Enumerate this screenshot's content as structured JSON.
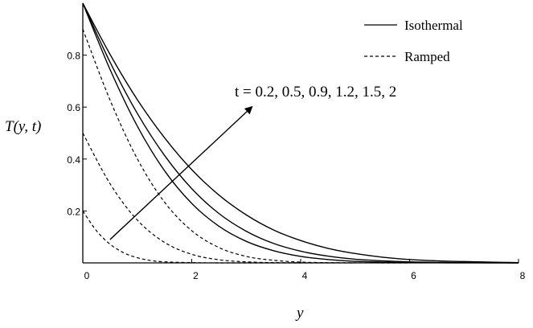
{
  "chart_data": {
    "type": "line",
    "title": "",
    "xlabel": "y",
    "ylabel": "T(y, t)",
    "xlim": [
      0,
      8
    ],
    "ylim": [
      0,
      1
    ],
    "x_ticks": [
      {
        "value": 0,
        "label": "0"
      },
      {
        "value": 2,
        "label": "2"
      },
      {
        "value": 4,
        "label": "4"
      },
      {
        "value": 6,
        "label": "6"
      },
      {
        "value": 8,
        "label": "8"
      }
    ],
    "y_ticks": [
      {
        "value": 0.2,
        "label": "0.2"
      },
      {
        "value": 0.4,
        "label": "0.4"
      },
      {
        "value": 0.6,
        "label": "0.6"
      },
      {
        "value": 0.8,
        "label": "0.8"
      }
    ],
    "grid": false,
    "legend": {
      "position": "top-right",
      "entries": [
        {
          "label": "Isothermal",
          "style": "solid"
        },
        {
          "label": "Ramped",
          "style": "dashed"
        }
      ]
    },
    "annotation": {
      "text": "t = 0.2, 0.5, 0.9, 1.2, 1.5, 2",
      "arrow_from": [
        0.5,
        0.09
      ],
      "arrow_to": [
        3.1,
        0.6
      ]
    },
    "series": [
      {
        "style": "solid",
        "t": 1.2,
        "x": [
          0,
          0.5,
          1,
          1.5,
          2,
          2.5,
          3,
          3.5,
          4,
          4.5,
          5,
          5.5,
          6,
          6.5,
          7,
          7.5,
          8
        ],
        "y": [
          1,
          0.745,
          0.527,
          0.355,
          0.229,
          0.141,
          0.083,
          0.047,
          0.025,
          0.013,
          0.006,
          0.003,
          0.001,
          0.0006,
          0.0002,
          0.0001,
          0
        ]
      },
      {
        "style": "solid",
        "t": 1.5,
        "x": [
          0,
          0.5,
          1,
          1.5,
          2,
          2.5,
          3,
          3.5,
          4,
          4.5,
          5,
          5.5,
          6,
          6.5,
          7,
          7.5,
          8
        ],
        "y": [
          1,
          0.773,
          0.576,
          0.414,
          0.286,
          0.19,
          0.122,
          0.075,
          0.045,
          0.026,
          0.014,
          0.008,
          0.004,
          0.002,
          0.001,
          0.0004,
          0
        ]
      },
      {
        "style": "solid",
        "t": 2,
        "x": [
          0,
          0.5,
          1,
          1.5,
          2,
          2.5,
          3,
          3.5,
          4,
          4.5,
          5,
          5.5,
          6,
          6.5,
          7,
          7.5,
          8
        ],
        "y": [
          1,
          0.803,
          0.629,
          0.482,
          0.359,
          0.261,
          0.185,
          0.127,
          0.086,
          0.056,
          0.036,
          0.022,
          0.013,
          0.008,
          0.005,
          0.003,
          0.001
        ]
      },
      {
        "style": "dashed",
        "t": 0.2,
        "x": [
          0,
          0.25,
          0.5,
          0.75,
          1,
          1.25,
          1.5,
          2,
          2.5,
          3,
          4
        ],
        "y": [
          0.2,
          0.124,
          0.072,
          0.039,
          0.02,
          0.009,
          0.004,
          0.001,
          0,
          0,
          0
        ]
      },
      {
        "style": "dashed",
        "t": 0.5,
        "x": [
          0,
          0.5,
          1,
          1.5,
          2,
          2.5,
          3,
          3.5,
          4,
          4.5,
          5
        ],
        "y": [
          0.5,
          0.305,
          0.165,
          0.079,
          0.033,
          0.012,
          0.004,
          0.001,
          0,
          0,
          0
        ]
      },
      {
        "style": "dashed",
        "t": 0.9,
        "x": [
          0,
          0.5,
          1,
          1.5,
          2,
          2.5,
          3,
          3.5,
          4,
          4.5,
          5,
          5.5,
          6
        ],
        "y": [
          0.9,
          0.627,
          0.401,
          0.234,
          0.124,
          0.059,
          0.025,
          0.01,
          0.003,
          0.001,
          0.0003,
          0.0001,
          0
        ]
      }
    ]
  }
}
